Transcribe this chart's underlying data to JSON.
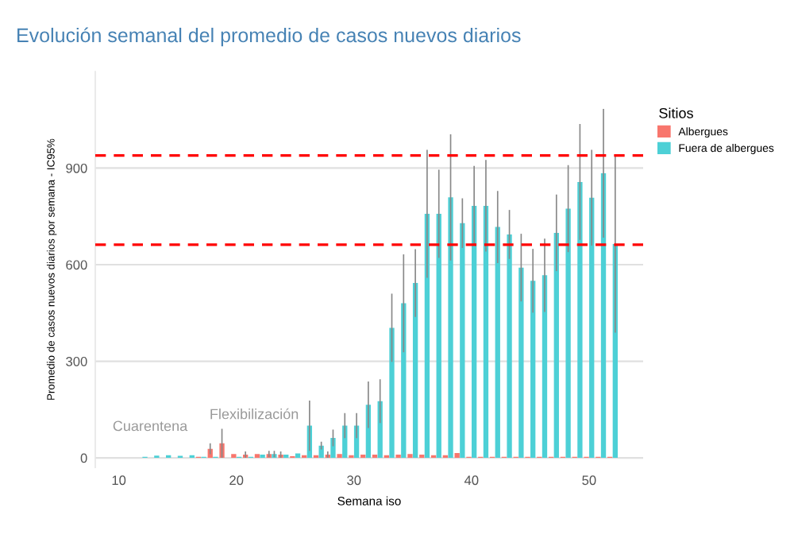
{
  "chart_data": {
    "type": "bar",
    "title": "Evolución semanal del promedio de casos nuevos diarios",
    "xlabel": "Semana iso",
    "ylabel": "Promedio de casos nuevos diarios por semana - IC95%",
    "legend_title": "Sitios",
    "legend": "right",
    "grid": "y",
    "xlim": [
      8,
      54.6
    ],
    "xticks": [
      10,
      20,
      30,
      40,
      50
    ],
    "ylim": [
      -30,
      1200
    ],
    "yticks": [
      0,
      300,
      600,
      900
    ],
    "series": [
      {
        "name": "Albergues",
        "color": "#f8766d",
        "x": [
          17,
          18,
          19,
          20,
          21,
          22,
          23,
          24,
          25,
          26,
          27,
          28,
          29,
          30,
          31,
          32,
          33,
          34,
          35,
          36,
          37,
          38,
          39,
          40,
          41,
          42,
          43,
          44,
          45,
          46,
          47,
          48,
          49,
          50,
          51,
          52
        ],
        "values": [
          3,
          28,
          45,
          12,
          10,
          12,
          12,
          10,
          5,
          8,
          8,
          10,
          12,
          8,
          10,
          10,
          8,
          10,
          12,
          10,
          8,
          8,
          15,
          3,
          3,
          3,
          3,
          3,
          3,
          3,
          3,
          3,
          3,
          3,
          3,
          3
        ],
        "errors": [
          null,
          17,
          45,
          null,
          10,
          null,
          10,
          10,
          null,
          null,
          null,
          10,
          null,
          null,
          null,
          null,
          null,
          null,
          null,
          null,
          null,
          null,
          null,
          null,
          null,
          null,
          null,
          null,
          null,
          null,
          null,
          null,
          null,
          null,
          null,
          null
        ]
      },
      {
        "name": "Fuera de albergues",
        "color": "#4dd0d6",
        "x": [
          10,
          11,
          12,
          13,
          14,
          15,
          16,
          17,
          18,
          19,
          20,
          21,
          22,
          23,
          24,
          25,
          26,
          27,
          28,
          29,
          30,
          31,
          32,
          33,
          34,
          35,
          36,
          37,
          38,
          39,
          40,
          41,
          42,
          43,
          44,
          45,
          46,
          47,
          48,
          49,
          50,
          51,
          52
        ],
        "values": [
          0,
          null,
          3,
          7,
          8,
          6,
          8,
          3,
          3,
          0,
          3,
          3,
          10,
          12,
          10,
          14,
          100,
          38,
          62,
          100,
          100,
          165,
          176,
          404,
          480,
          543,
          758,
          758,
          809,
          729,
          783,
          783,
          717,
          694,
          591,
          550,
          567,
          699,
          774,
          857,
          808,
          884,
          664
        ],
        "errors": [
          null,
          null,
          null,
          null,
          null,
          null,
          null,
          null,
          null,
          null,
          null,
          null,
          null,
          10,
          null,
          null,
          78,
          12,
          26,
          39,
          39,
          72,
          68,
          106,
          152,
          105,
          199,
          137,
          196,
          77,
          124,
          142,
          112,
          76,
          105,
          99,
          114,
          119,
          135,
          180,
          149,
          200,
          275
        ]
      }
    ],
    "ref_lines": [
      {
        "axis": "y",
        "value": 939,
        "color": "#ff0000",
        "line_style": "dashed"
      },
      {
        "axis": "y",
        "value": 662,
        "color": "#ff0000",
        "line_style": "dashed"
      }
    ],
    "annotations": [
      "Cuarentena",
      "Flexibilización"
    ]
  }
}
